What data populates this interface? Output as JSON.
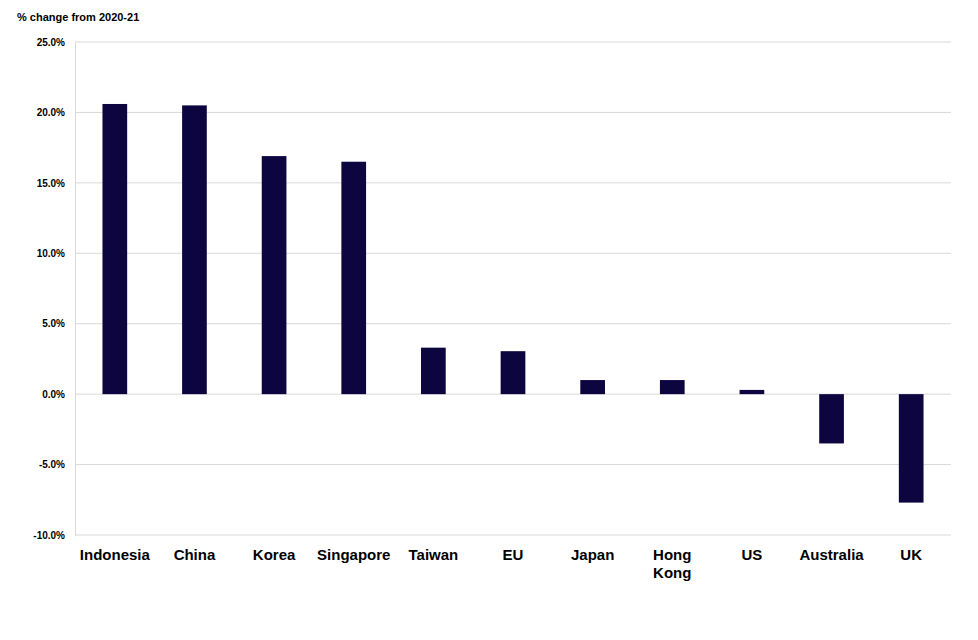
{
  "chart_data": {
    "type": "bar",
    "y_axis_label": "% change from 2020-21",
    "categories": [
      "Indonesia",
      "China",
      "Korea",
      "Singapore",
      "Taiwan",
      "EU",
      "Japan",
      "Hong Kong",
      "US",
      "Australia",
      "UK"
    ],
    "values": [
      20.6,
      20.5,
      16.9,
      16.5,
      3.3,
      3.05,
      1.0,
      1.0,
      0.3,
      -3.5,
      -7.7
    ],
    "color": "#0c0540",
    "ylim": [
      -10,
      25
    ],
    "yticks": [
      {
        "value": -10,
        "label": "-10.0%"
      },
      {
        "value": -5,
        "label": "-5.0%"
      },
      {
        "value": 0,
        "label": "0.0%"
      },
      {
        "value": 5,
        "label": "5.0%"
      },
      {
        "value": 10,
        "label": "10.0%"
      },
      {
        "value": 15,
        "label": "15.0%"
      },
      {
        "value": 20,
        "label": "20.0%"
      },
      {
        "value": 25,
        "label": "25.0%"
      }
    ],
    "grid": true
  }
}
